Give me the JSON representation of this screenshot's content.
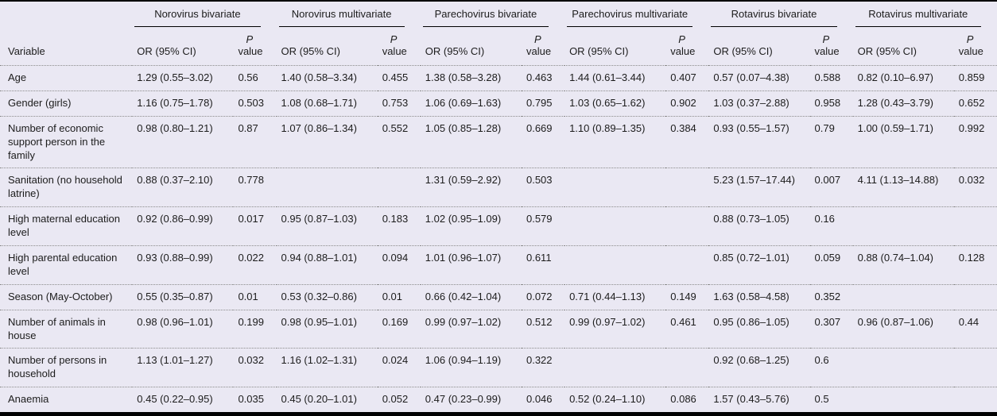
{
  "table": {
    "column_groups": [
      "Norovirus bivariate",
      "Norovirus multivariate",
      "Parechovirus bivariate",
      "Parechovirus multivariate",
      "Rotavirus bivariate",
      "Rotavirus multivariate"
    ],
    "variable_header": "Variable",
    "or_ci_header": "OR (95% CI)",
    "p_header": {
      "line1": "P",
      "line2": "value"
    },
    "rows": [
      {
        "variable": "Age",
        "values": [
          "1.29 (0.55–3.02)",
          "0.56",
          "1.40 (0.58–3.34)",
          "0.455",
          "1.38 (0.58–3.28)",
          "0.463",
          "1.44 (0.61–3.44)",
          "0.407",
          "0.57 (0.07–4.38)",
          "0.588",
          "0.82 (0.10–6.97)",
          "0.859"
        ]
      },
      {
        "variable": "Gender (girls)",
        "values": [
          "1.16 (0.75–1.78)",
          "0.503",
          "1.08 (0.68–1.71)",
          "0.753",
          "1.06 (0.69–1.63)",
          "0.795",
          "1.03 (0.65–1.62)",
          "0.902",
          "1.03 (0.37–2.88)",
          "0.958",
          "1.28 (0.43–3.79)",
          "0.652"
        ]
      },
      {
        "variable": "Number of economic support person in the family",
        "values": [
          "0.98 (0.80–1.21)",
          "0.87",
          "1.07 (0.86–1.34)",
          "0.552",
          "1.05 (0.85–1.28)",
          "0.669",
          "1.10 (0.89–1.35)",
          "0.384",
          "0.93 (0.55–1.57)",
          "0.79",
          "1.00 (0.59–1.71)",
          "0.992"
        ]
      },
      {
        "variable": "Sanitation (no household latrine)",
        "values": [
          "0.88 (0.37–2.10)",
          "0.778",
          "",
          "",
          "1.31 (0.59–2.92)",
          "0.503",
          "",
          "",
          "5.23 (1.57–17.44)",
          "0.007",
          "4.11 (1.13–14.88)",
          "0.032"
        ]
      },
      {
        "variable": "High maternal education level",
        "values": [
          "0.92 (0.86–0.99)",
          "0.017",
          "0.95 (0.87–1.03)",
          "0.183",
          "1.02 (0.95–1.09)",
          "0.579",
          "",
          "",
          "0.88 (0.73–1.05)",
          "0.16",
          "",
          ""
        ]
      },
      {
        "variable": "High parental education level",
        "values": [
          "0.93 (0.88–0.99)",
          "0.022",
          "0.94 (0.88–1.01)",
          "0.094",
          "1.01 (0.96–1.07)",
          "0.611",
          "",
          "",
          "0.85 (0.72–1.01)",
          "0.059",
          "0.88 (0.74–1.04)",
          "0.128"
        ]
      },
      {
        "variable": "Season (May-October)",
        "values": [
          "0.55 (0.35–0.87)",
          "0.01",
          "0.53 (0.32–0.86)",
          "0.01",
          "0.66 (0.42–1.04)",
          "0.072",
          "0.71 (0.44–1.13)",
          "0.149",
          "1.63 (0.58–4.58)",
          "0.352",
          "",
          ""
        ]
      },
      {
        "variable": "Number of animals in house",
        "values": [
          "0.98 (0.96–1.01)",
          "0.199",
          "0.98 (0.95–1.01)",
          "0.169",
          "0.99 (0.97–1.02)",
          "0.512",
          "0.99 (0.97–1.02)",
          "0.461",
          "0.95 (0.86–1.05)",
          "0.307",
          "0.96 (0.87–1.06)",
          "0.44"
        ]
      },
      {
        "variable": "Number of persons in household",
        "values": [
          "1.13 (1.01–1.27)",
          "0.032",
          "1.16 (1.02–1.31)",
          "0.024",
          "1.06 (0.94–1.19)",
          "0.322",
          "",
          "",
          "0.92 (0.68–1.25)",
          "0.6",
          "",
          ""
        ]
      },
      {
        "variable": "Anaemia",
        "values": [
          "0.45 (0.22–0.95)",
          "0.035",
          "0.45 (0.20–1.01)",
          "0.052",
          "0.47 (0.23–0.99)",
          "0.046",
          "0.52 (0.24–1.10)",
          "0.086",
          "1.57 (0.43–5.76)",
          "0.5",
          "",
          ""
        ]
      }
    ],
    "colors": {
      "table_background": "#eae8f3",
      "top_rule": "#000000",
      "bottom_rule": "#000000",
      "group_underline": "#000000",
      "dotted_separator": "#8b8b8b",
      "text": "#1c1c1c"
    }
  }
}
